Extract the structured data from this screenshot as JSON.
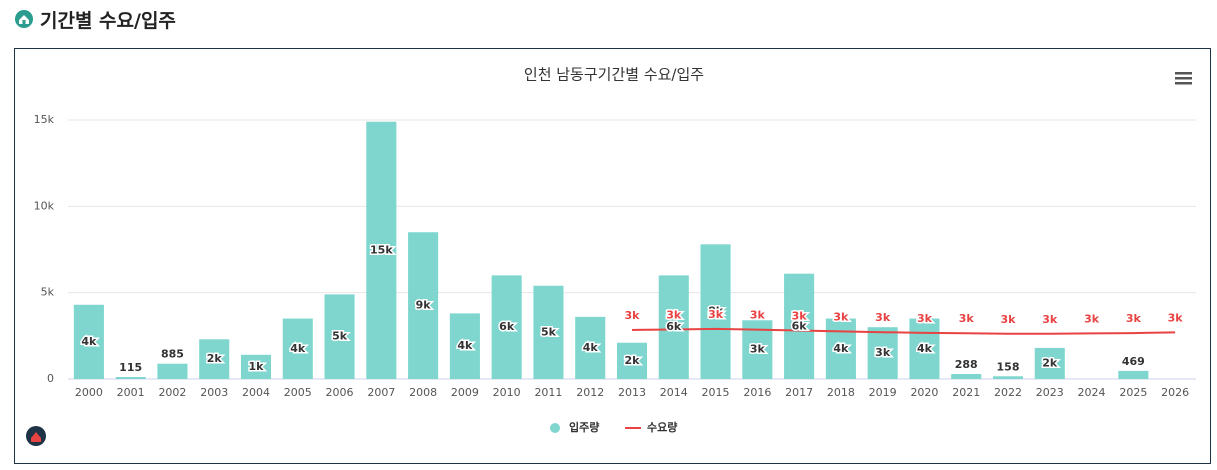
{
  "header_title": "기간별 수요/입주",
  "chart_data": {
    "type": "bar",
    "title": "인천 남동구기간별 수요/입주",
    "categories": [
      "2000",
      "2001",
      "2002",
      "2003",
      "2004",
      "2005",
      "2006",
      "2007",
      "2008",
      "2009",
      "2010",
      "2011",
      "2012",
      "2013",
      "2014",
      "2015",
      "2016",
      "2017",
      "2018",
      "2019",
      "2020",
      "2021",
      "2022",
      "2023",
      "2024",
      "2025",
      "2026"
    ],
    "series": [
      {
        "name": "입주량",
        "type": "bar",
        "color": "#7fd6cf",
        "values": [
          4300,
          115,
          885,
          2300,
          1400,
          3500,
          4900,
          14900,
          8500,
          3800,
          6000,
          5400,
          3600,
          2100,
          6000,
          7800,
          3400,
          6100,
          3500,
          3000,
          3500,
          288,
          158,
          1800,
          null,
          469,
          null
        ],
        "value_labels": [
          "4k",
          "115",
          "885",
          "2k",
          "1k",
          "4k",
          "5k",
          "15k",
          "9k",
          "4k",
          "6k",
          "5k",
          "4k",
          "2k",
          "6k",
          "8k",
          "3k",
          "6k",
          "4k",
          "3k",
          "4k",
          "288",
          "158",
          "2k",
          null,
          "469",
          null
        ]
      },
      {
        "name": "수요량",
        "type": "line",
        "color": "#e84343",
        "values": [
          null,
          null,
          null,
          null,
          null,
          null,
          null,
          null,
          null,
          null,
          null,
          null,
          null,
          2840,
          2870,
          2900,
          2860,
          2810,
          2760,
          2710,
          2670,
          2650,
          2620,
          2620,
          2640,
          2660,
          2700
        ],
        "value_labels": [
          null,
          null,
          null,
          null,
          null,
          null,
          null,
          null,
          null,
          null,
          null,
          null,
          null,
          "3k",
          "3k",
          "3k",
          "3k",
          "3k",
          "3k",
          "3k",
          "3k",
          "3k",
          "3k",
          "3k",
          "3k",
          "3k",
          "3k"
        ]
      }
    ],
    "ylim": [
      0,
      15000
    ],
    "yticks": [
      0,
      {
        "value": 5000,
        "label": "5k"
      },
      {
        "value": 10000,
        "label": "10k"
      },
      {
        "value": 15000,
        "label": "15k"
      }
    ],
    "grid": true,
    "legend": "bottom"
  }
}
